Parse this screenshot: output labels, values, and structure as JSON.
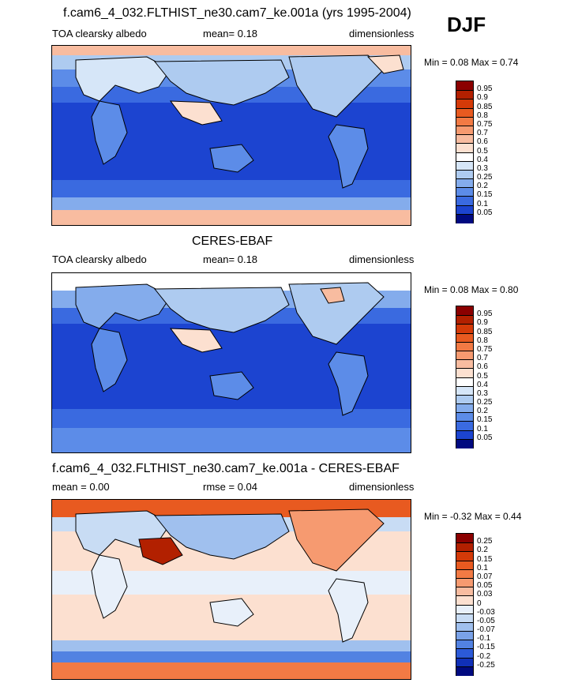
{
  "season": "DJF",
  "panels": [
    {
      "title": "f.cam6_4_032.FLTHIST_ne30.cam7_ke.001a (yrs 1995-2004)",
      "left": "TOA clearsky albedo",
      "center": "mean=   0.18",
      "right": "dimensionless",
      "minmax": "Min =   0.08 Max =   0.74",
      "colorbar_labels": [
        "0.95",
        "0.9",
        "0.85",
        "0.8",
        "0.75",
        "0.7",
        "0.6",
        "0.5",
        "0.4",
        "0.3",
        "0.25",
        "0.2",
        "0.15",
        "0.1",
        "0.05"
      ],
      "colorbar_colors": [
        "#8b0000",
        "#b22000",
        "#d43a08",
        "#e85a20",
        "#f27a44",
        "#f69a70",
        "#f8bca0",
        "#fce0d0",
        "#ffffff",
        "#d6e6f8",
        "#aecbf0",
        "#84acec",
        "#5c8ce8",
        "#3a6ae0",
        "#1c44d0",
        "#000a80"
      ]
    },
    {
      "title": "CERES-EBAF",
      "left": "TOA clearsky albedo",
      "center": "mean=   0.18",
      "right": "dimensionless",
      "minmax": "Min =   0.08 Max =   0.80",
      "colorbar_labels": [
        "0.95",
        "0.9",
        "0.85",
        "0.8",
        "0.75",
        "0.7",
        "0.6",
        "0.5",
        "0.4",
        "0.3",
        "0.25",
        "0.2",
        "0.15",
        "0.1",
        "0.05"
      ],
      "colorbar_colors": [
        "#8b0000",
        "#b22000",
        "#d43a08",
        "#e85a20",
        "#f27a44",
        "#f69a70",
        "#f8bca0",
        "#fce0d0",
        "#ffffff",
        "#d6e6f8",
        "#aecbf0",
        "#84acec",
        "#5c8ce8",
        "#3a6ae0",
        "#1c44d0",
        "#000a80"
      ]
    },
    {
      "title": "f.cam6_4_032.FLTHIST_ne30.cam7_ke.001a - CERES-EBAF",
      "left": "mean =   0.00",
      "center": "rmse =   0.04",
      "right": "dimensionless",
      "minmax": "Min =  -0.32 Max =   0.44",
      "colorbar_labels": [
        "0.25",
        "0.2",
        "0.15",
        "0.1",
        "0.07",
        "0.05",
        "0.03",
        "0",
        "-0.03",
        "-0.05",
        "-0.07",
        "-0.1",
        "-0.15",
        "-0.2",
        "-0.25"
      ],
      "colorbar_colors": [
        "#8b0000",
        "#b22000",
        "#d43a08",
        "#e85a20",
        "#f27a44",
        "#f69a70",
        "#f8bca0",
        "#fce0d0",
        "#e8f0fa",
        "#c8dcf4",
        "#a0c0ee",
        "#7aa2e8",
        "#5282e2",
        "#2c5ad8",
        "#1030b8",
        "#000a80"
      ]
    }
  ]
}
